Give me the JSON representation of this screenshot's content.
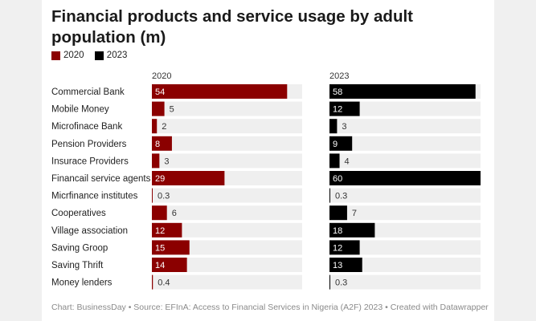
{
  "title": "Financial products and service usage by adult population (m)",
  "source": "Chart: BusinessDay • Source: EFInA: Access to Financial Services in Nigeria (A2F) 2023 • Created with Datawrapper",
  "colors": {
    "2020": "#8b0000",
    "2023": "#000000",
    "track": "#efefef"
  },
  "chart_data": {
    "type": "bar",
    "title": "Financial products and service usage by adult population (m)",
    "categories": [
      "Commercial Bank",
      "Mobile Money",
      "Microfinace Bank",
      "Pension Providers",
      "Insurace Providers",
      "Financail service agents",
      "Micrfinance institutes",
      "Cooperatives",
      "Village association",
      "Saving Groop",
      "Saving Thrift",
      "Money lenders"
    ],
    "series": [
      {
        "name": "2020",
        "values": [
          54,
          5,
          2,
          8,
          3,
          29,
          0.3,
          6,
          12,
          15,
          14,
          0.4
        ]
      },
      {
        "name": "2023",
        "values": [
          58,
          12,
          3,
          9,
          4,
          60,
          0.3,
          7,
          18,
          12,
          13,
          0.3
        ]
      }
    ],
    "xlim": [
      0,
      60
    ],
    "legend": "top-left"
  }
}
